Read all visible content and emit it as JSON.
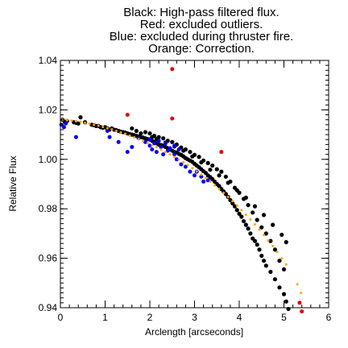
{
  "chart_data": {
    "type": "scatter",
    "title_lines": [
      "Black: High-pass filtered flux.",
      "Red: excluded outliers.",
      "Blue: excluded during thruster fire.",
      "Orange: Correction."
    ],
    "xlabel": "Arclength [arcseconds]",
    "ylabel": "Relative Flux",
    "xlim": [
      0,
      6
    ],
    "ylim": [
      0.94,
      1.04
    ],
    "xticks": [
      0,
      1,
      2,
      3,
      4,
      5,
      6
    ],
    "xtick_labels": [
      "0",
      "1",
      "2",
      "3",
      "4",
      "5",
      "6"
    ],
    "yticks": [
      0.94,
      0.96,
      0.98,
      1.0,
      1.02,
      1.04
    ],
    "ytick_labels": [
      "0.94",
      "0.96",
      "0.98",
      "1.00",
      "1.02",
      "1.04"
    ],
    "grid": false,
    "series": [
      {
        "color": "#000000",
        "marker": "large-dot",
        "points": [
          [
            0.05,
            1.016
          ],
          [
            0.1,
            1.015
          ],
          [
            0.15,
            1.0155
          ],
          [
            0.3,
            1.015
          ],
          [
            0.35,
            1.0148
          ],
          [
            0.4,
            1.0145
          ],
          [
            0.45,
            1.017
          ],
          [
            0.55,
            1.015
          ],
          [
            0.7,
            1.014
          ],
          [
            0.75,
            1.0138
          ],
          [
            0.8,
            1.0135
          ],
          [
            0.85,
            1.0135
          ],
          [
            0.9,
            1.013
          ],
          [
            0.95,
            1.0128
          ],
          [
            1.0,
            1.013
          ],
          [
            1.05,
            1.0125
          ],
          [
            1.1,
            1.012
          ],
          [
            1.15,
            1.0125
          ],
          [
            1.2,
            1.012
          ],
          [
            1.25,
            1.0118
          ],
          [
            1.3,
            1.0115
          ],
          [
            1.35,
            1.0112
          ],
          [
            1.4,
            1.011
          ],
          [
            1.45,
            1.0108
          ],
          [
            1.5,
            1.0105
          ],
          [
            1.55,
            1.0102
          ],
          [
            1.6,
            1.01
          ],
          [
            1.65,
            1.0098
          ],
          [
            1.7,
            1.0095
          ],
          [
            1.75,
            1.0092
          ],
          [
            1.8,
            1.009
          ],
          [
            1.85,
            1.0088
          ],
          [
            1.9,
            1.0085
          ],
          [
            1.95,
            1.0082
          ],
          [
            2.0,
            1.008
          ],
          [
            2.05,
            1.0075
          ],
          [
            2.1,
            1.007
          ],
          [
            2.15,
            1.0065
          ],
          [
            2.2,
            1.006
          ],
          [
            2.25,
            1.0058
          ],
          [
            2.3,
            1.0055
          ],
          [
            2.35,
            1.005
          ],
          [
            2.4,
            1.0045
          ],
          [
            2.45,
            1.004
          ],
          [
            2.5,
            1.0035
          ],
          [
            2.55,
            1.003
          ],
          [
            2.6,
            1.0028
          ],
          [
            2.65,
            1.0022
          ],
          [
            2.7,
            1.0018
          ],
          [
            2.75,
            1.0012
          ],
          [
            2.8,
            1.0005
          ],
          [
            2.85,
            1.0
          ],
          [
            2.9,
            0.9995
          ],
          [
            2.95,
            0.999
          ],
          [
            3.0,
            0.9982
          ],
          [
            3.05,
            0.9975
          ],
          [
            3.1,
            0.9968
          ],
          [
            3.15,
            0.996
          ],
          [
            3.2,
            0.9952
          ],
          [
            3.25,
            0.9945
          ],
          [
            3.3,
            0.9935
          ],
          [
            3.35,
            0.9928
          ],
          [
            3.4,
            0.992
          ],
          [
            3.45,
            0.991
          ],
          [
            3.5,
            0.99
          ],
          [
            3.55,
            0.9892
          ],
          [
            3.6,
            0.988
          ],
          [
            3.65,
            0.987
          ],
          [
            3.7,
            0.986
          ],
          [
            3.75,
            0.9848
          ],
          [
            3.8,
            0.9835
          ],
          [
            3.85,
            0.9822
          ],
          [
            3.9,
            0.981
          ],
          [
            3.95,
            0.9795
          ],
          [
            4.0,
            0.978
          ],
          [
            4.05,
            0.9768
          ],
          [
            4.1,
            0.975
          ],
          [
            4.15,
            0.9735
          ],
          [
            4.2,
            0.972
          ],
          [
            4.25,
            0.97
          ],
          [
            4.3,
            0.968
          ],
          [
            4.35,
            0.967
          ],
          [
            4.4,
            0.9655
          ],
          [
            4.45,
            0.9635
          ],
          [
            4.5,
            0.961
          ],
          [
            4.55,
            0.959
          ],
          [
            4.6,
            0.957
          ],
          [
            4.7,
            0.9545
          ],
          [
            4.8,
            0.9515
          ],
          [
            4.9,
            0.9482
          ],
          [
            5.0,
            0.9455
          ],
          [
            5.05,
            0.9425
          ],
          [
            5.1,
            0.9395
          ],
          [
            1.9,
            1.011
          ],
          [
            2.0,
            1.0105
          ],
          [
            2.1,
            1.0095
          ],
          [
            2.2,
            1.009
          ],
          [
            2.3,
            1.0085
          ],
          [
            2.4,
            1.0075
          ],
          [
            2.5,
            1.007
          ],
          [
            2.6,
            1.006
          ],
          [
            2.7,
            1.0048
          ],
          [
            2.8,
            1.004
          ],
          [
            2.9,
            1.003
          ],
          [
            3.0,
            1.0018
          ],
          [
            3.1,
            1.001
          ],
          [
            3.2,
            0.9995
          ],
          [
            3.3,
            0.9985
          ],
          [
            3.4,
            0.9975
          ],
          [
            3.5,
            0.996
          ],
          [
            3.6,
            0.995
          ],
          [
            3.7,
            0.993
          ],
          [
            3.8,
            0.991
          ],
          [
            3.9,
            0.9885
          ],
          [
            4.0,
            0.9865
          ],
          [
            4.1,
            0.984
          ],
          [
            4.2,
            0.9815
          ],
          [
            4.3,
            0.9785
          ],
          [
            4.4,
            0.9755
          ],
          [
            4.5,
            0.9725
          ],
          [
            4.6,
            0.97
          ],
          [
            4.7,
            0.967
          ],
          [
            4.8,
            0.9635
          ],
          [
            4.9,
            0.959
          ],
          [
            5.0,
            0.9555
          ],
          [
            1.6,
            1.0125
          ],
          [
            1.7,
            1.0115
          ],
          [
            1.8,
            1.0105
          ],
          [
            2.05,
            1.009
          ],
          [
            2.15,
            1.0082
          ],
          [
            2.35,
            1.0068
          ],
          [
            2.55,
            1.0052
          ],
          [
            2.75,
            1.0035
          ],
          [
            2.95,
            1.0012
          ],
          [
            3.15,
            0.9988
          ],
          [
            3.35,
            0.9958
          ],
          [
            3.55,
            0.9935
          ],
          [
            3.75,
            0.9905
          ],
          [
            3.95,
            0.9875
          ],
          [
            4.15,
            0.9845
          ],
          [
            4.35,
            0.981
          ],
          [
            4.55,
            0.9775
          ],
          [
            4.75,
            0.9735
          ],
          [
            4.95,
            0.9695
          ],
          [
            5.05,
            0.9665
          ]
        ]
      },
      {
        "color": "#0000ff",
        "marker": "dot",
        "points": [
          [
            0.02,
            1.014
          ],
          [
            0.08,
            1.013
          ],
          [
            0.12,
            1.0145
          ],
          [
            0.35,
            1.009
          ],
          [
            1.05,
            1.0115
          ],
          [
            1.1,
            1.009
          ],
          [
            1.3,
            1.007
          ],
          [
            1.5,
            1.003
          ],
          [
            1.6,
            1.005
          ],
          [
            1.75,
            1.0085
          ],
          [
            1.9,
            1.007
          ],
          [
            2.0,
            1.0055
          ],
          [
            2.05,
            1.004
          ],
          [
            2.15,
            1.003
          ],
          [
            2.25,
            1.005
          ],
          [
            2.3,
            1.002
          ],
          [
            2.4,
            1.0035
          ],
          [
            2.55,
            1.002
          ],
          [
            2.6,
            1.0
          ],
          [
            2.65,
            1.004
          ],
          [
            2.7,
            0.998
          ],
          [
            2.8,
            0.997
          ],
          [
            2.9,
            0.995
          ],
          [
            3.0,
            0.9935
          ],
          [
            3.05,
            0.995
          ],
          [
            3.15,
            0.993
          ],
          [
            3.2,
            0.991
          ],
          [
            3.3,
            0.9915
          ],
          [
            2.0,
            1.008
          ],
          [
            2.1,
            1.0065
          ],
          [
            2.2,
            1.0075
          ],
          [
            2.35,
            1.0065
          ],
          [
            2.45,
            1.0045
          ],
          [
            2.55,
            1.0055
          ]
        ]
      },
      {
        "color": "#e60000",
        "marker": "dot",
        "points": [
          [
            1.5,
            1.018
          ],
          [
            2.5,
            1.0365
          ],
          [
            2.5,
            1.0165
          ],
          [
            3.6,
            1.003
          ],
          [
            5.35,
            0.942
          ],
          [
            5.4,
            0.9385
          ]
        ]
      },
      {
        "color": "#ffa500",
        "marker": "small-dot",
        "points": [
          [
            0.05,
            1.016
          ],
          [
            0.15,
            1.0158
          ],
          [
            0.25,
            1.0156
          ],
          [
            0.35,
            1.0154
          ],
          [
            0.45,
            1.0152
          ],
          [
            0.55,
            1.0148
          ],
          [
            0.65,
            1.0144
          ],
          [
            0.75,
            1.014
          ],
          [
            0.85,
            1.0136
          ],
          [
            0.95,
            1.0131
          ],
          [
            1.05,
            1.0126
          ],
          [
            1.15,
            1.0121
          ],
          [
            1.25,
            1.0115
          ],
          [
            1.35,
            1.0109
          ],
          [
            1.45,
            1.0103
          ],
          [
            1.55,
            1.0096
          ],
          [
            1.65,
            1.0089
          ],
          [
            1.75,
            1.0082
          ],
          [
            1.85,
            1.0074
          ],
          [
            1.95,
            1.0066
          ],
          [
            2.05,
            1.0058
          ],
          [
            2.15,
            1.0049
          ],
          [
            2.25,
            1.004
          ],
          [
            2.35,
            1.003
          ],
          [
            2.45,
            1.002
          ],
          [
            2.55,
            1.001
          ],
          [
            2.65,
            0.9999
          ],
          [
            2.75,
            0.9988
          ],
          [
            2.85,
            0.9976
          ],
          [
            2.95,
            0.9964
          ],
          [
            3.05,
            0.9951
          ],
          [
            3.15,
            0.9938
          ],
          [
            3.25,
            0.9924
          ],
          [
            3.35,
            0.991
          ],
          [
            3.45,
            0.9895
          ],
          [
            3.55,
            0.988
          ],
          [
            3.65,
            0.9864
          ],
          [
            3.75,
            0.9848
          ],
          [
            3.85,
            0.9831
          ],
          [
            3.95,
            0.9813
          ],
          [
            4.05,
            0.9795
          ],
          [
            4.15,
            0.9776
          ],
          [
            4.25,
            0.9757
          ],
          [
            4.35,
            0.9737
          ],
          [
            4.45,
            0.9716
          ],
          [
            4.55,
            0.9694
          ],
          [
            4.65,
            0.9672
          ],
          [
            4.75,
            0.9649
          ],
          [
            4.85,
            0.9625
          ],
          [
            4.95,
            0.96
          ],
          [
            5.05,
            0.9575
          ],
          [
            5.3,
            0.9495
          ],
          [
            5.38,
            0.946
          ]
        ]
      }
    ]
  }
}
